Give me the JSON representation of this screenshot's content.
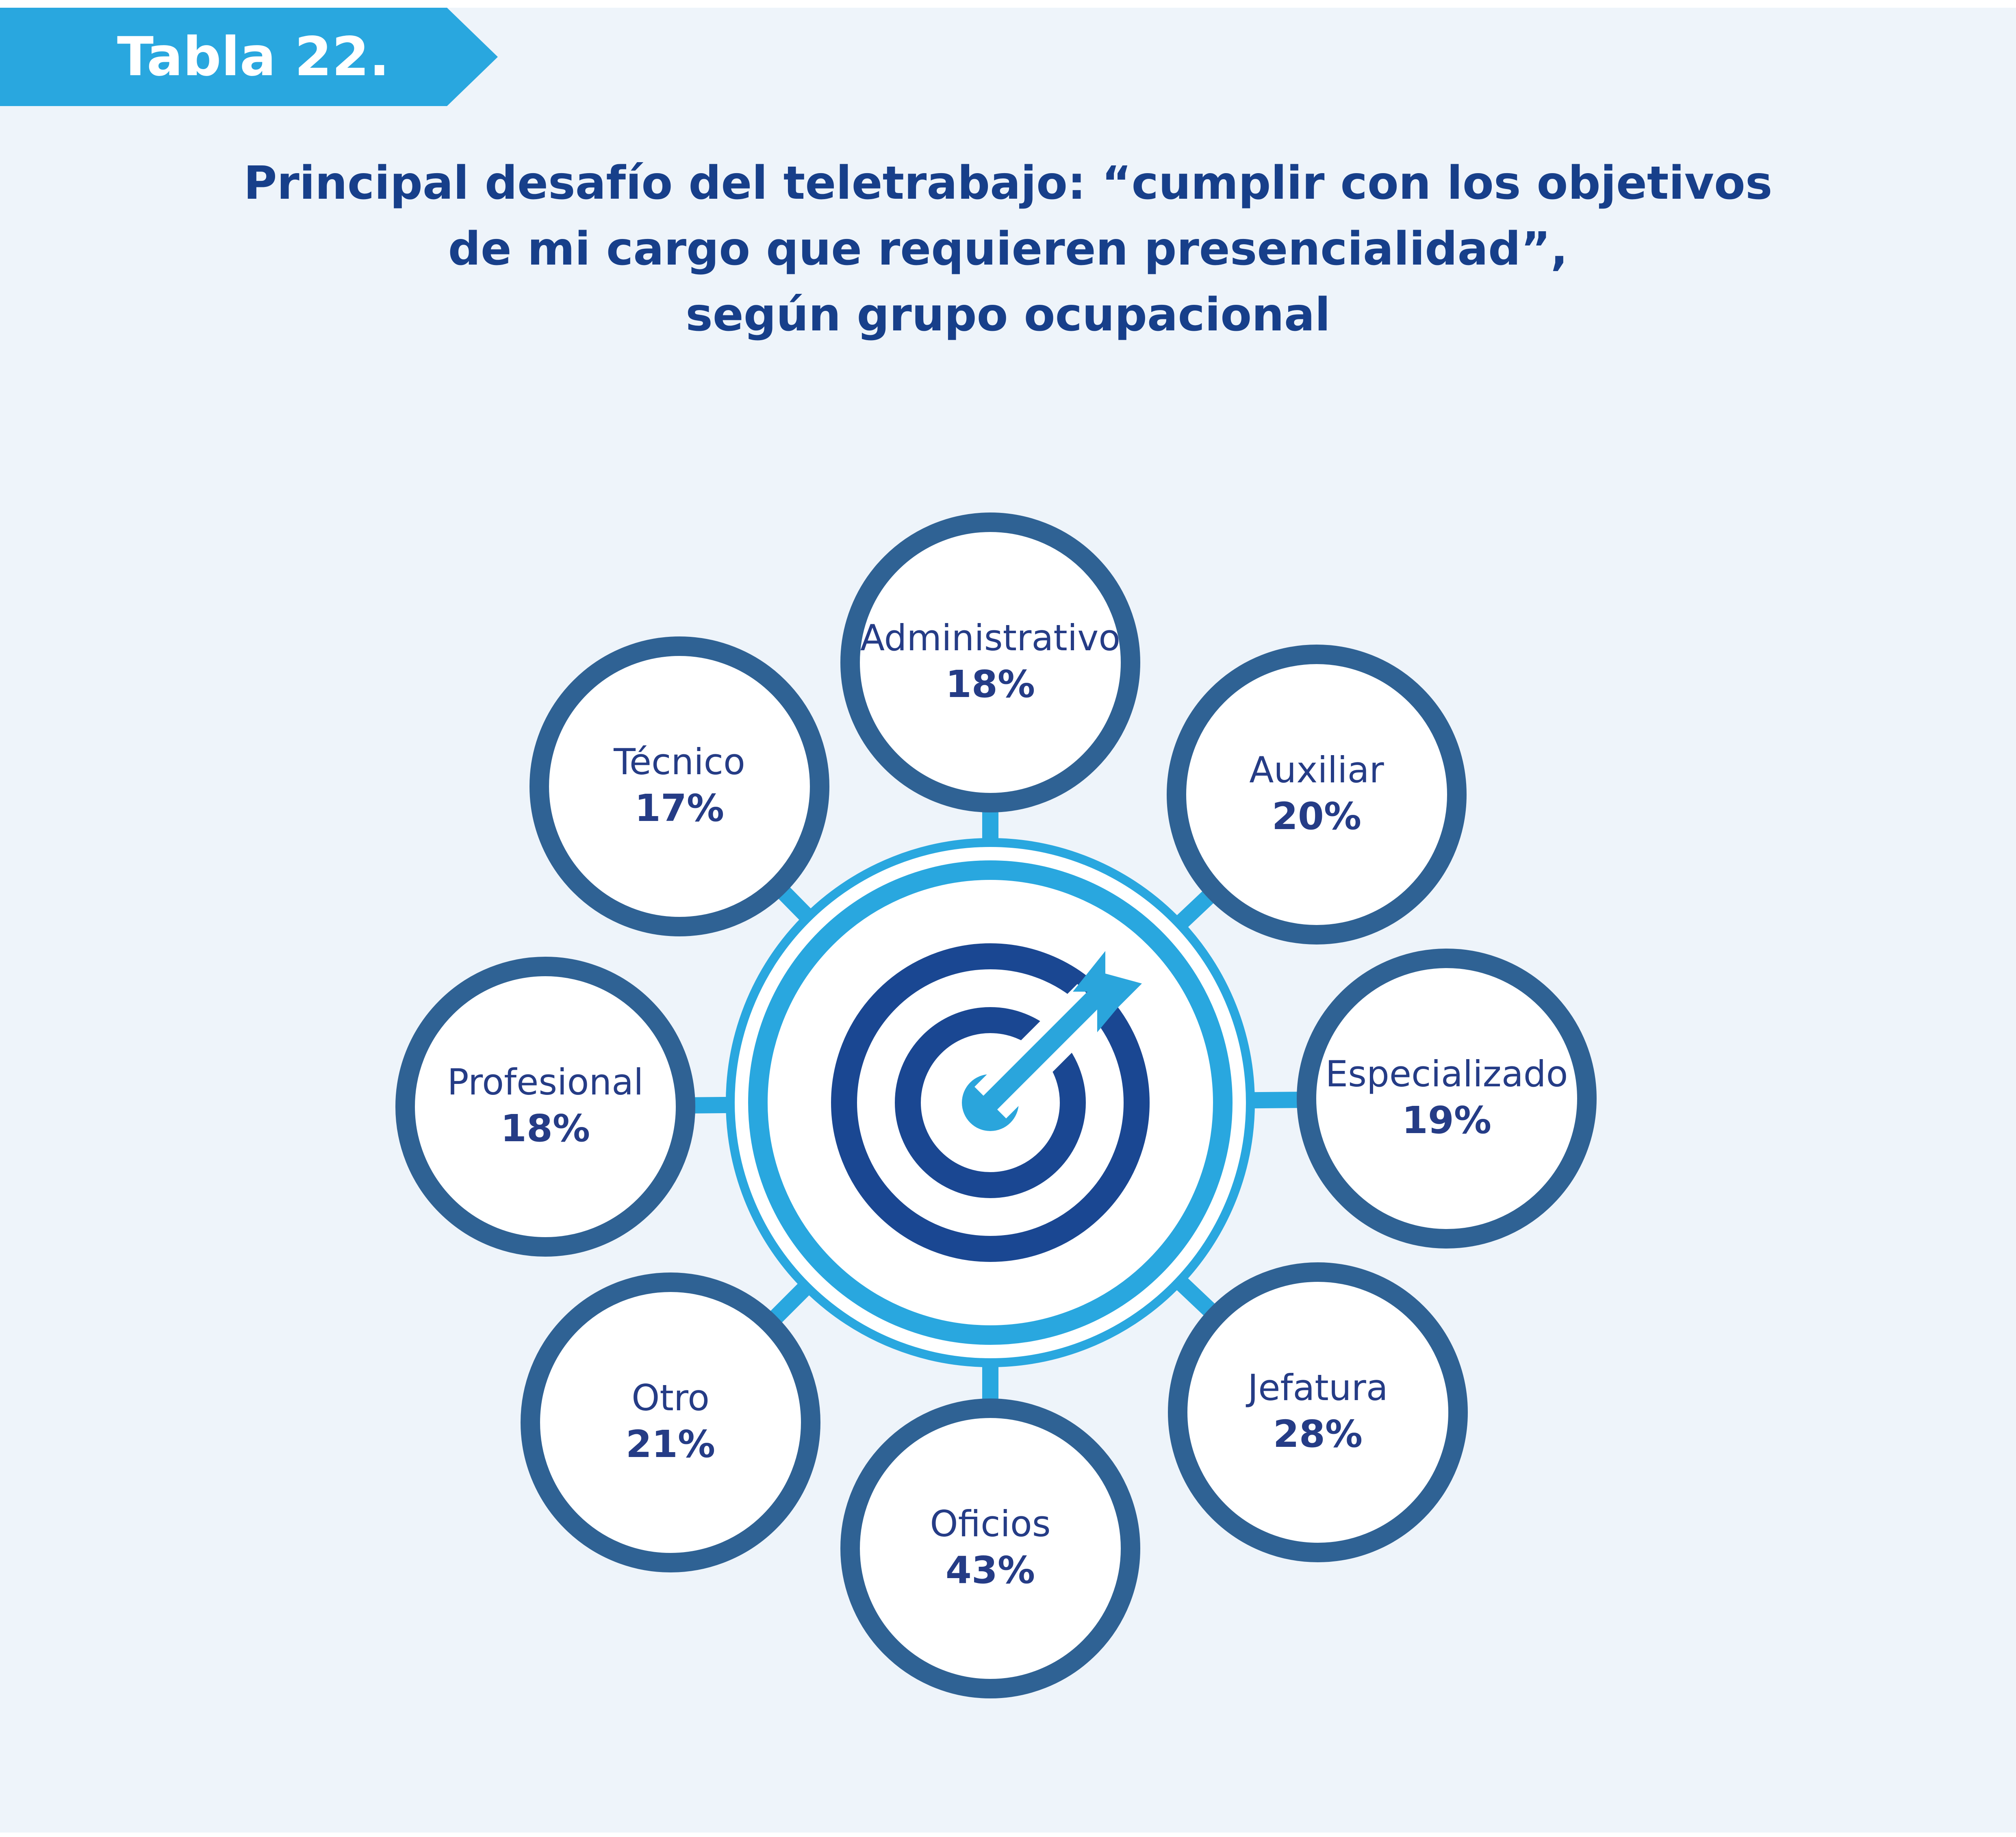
{
  "header": {
    "tag": "Tabla 22.",
    "title_lines": [
      "Principal desafío del teletrabajo: “cumplir con los objetivos",
      "de mi cargo que requieren presencialidad”,",
      "según grupo ocupacional"
    ]
  },
  "diagram": {
    "center_icon": "target-arrow-icon",
    "nodes": [
      {
        "name": "Administrativo",
        "value": "18%",
        "percent": 18
      },
      {
        "name": "Auxiliar",
        "value": "20%",
        "percent": 20
      },
      {
        "name": "Especializado",
        "value": "19%",
        "percent": 19
      },
      {
        "name": "Jefatura",
        "value": "28%",
        "percent": 28
      },
      {
        "name": "Oficios",
        "value": "43%",
        "percent": 43
      },
      {
        "name": "Otro",
        "value": "21%",
        "percent": 21
      },
      {
        "name": "Profesional",
        "value": "18%",
        "percent": 18
      },
      {
        "name": "Técnico",
        "value": "17%",
        "percent": 17
      }
    ]
  },
  "colors": {
    "node_ring": "#2f6294",
    "outer_ring": "#29a7df",
    "target": "#1a4792",
    "arrow": "#2aa5dc",
    "text": "#253c86",
    "tag_bg": "#29a7df",
    "title": "#173f8a",
    "background": "#eef4fa"
  }
}
